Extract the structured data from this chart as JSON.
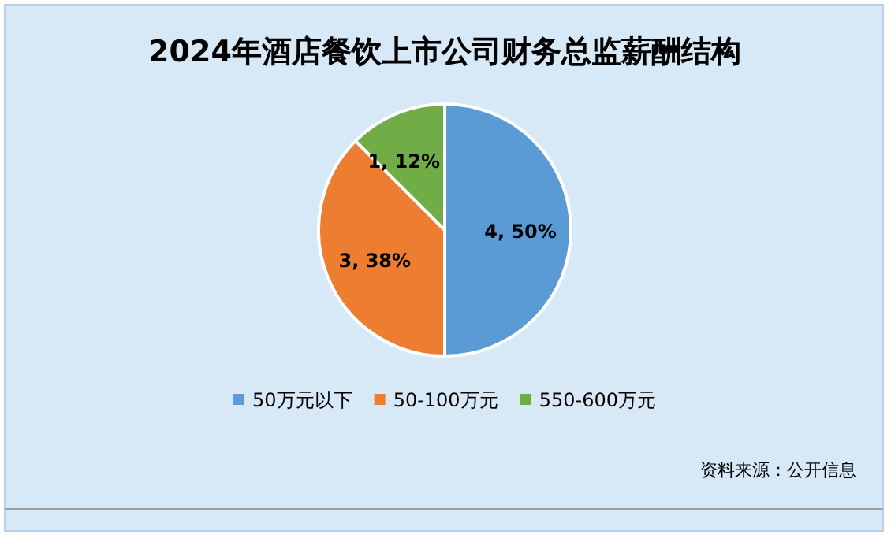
{
  "chart_data": {
    "type": "pie",
    "title": "2024年酒店餐饮上市公司财务总监薪酬结构",
    "categories": [
      "50万元以下",
      "50-100万元",
      "550-600万元"
    ],
    "values": [
      4,
      3,
      1
    ],
    "colors": [
      "#5b9bd5",
      "#ed7d31",
      "#70ad47"
    ],
    "value_labels": [
      "4, 50%",
      "3, 38%",
      "1, 12%"
    ],
    "legend": "bottom",
    "annotations": [
      "资料来源：公开信息"
    ]
  }
}
